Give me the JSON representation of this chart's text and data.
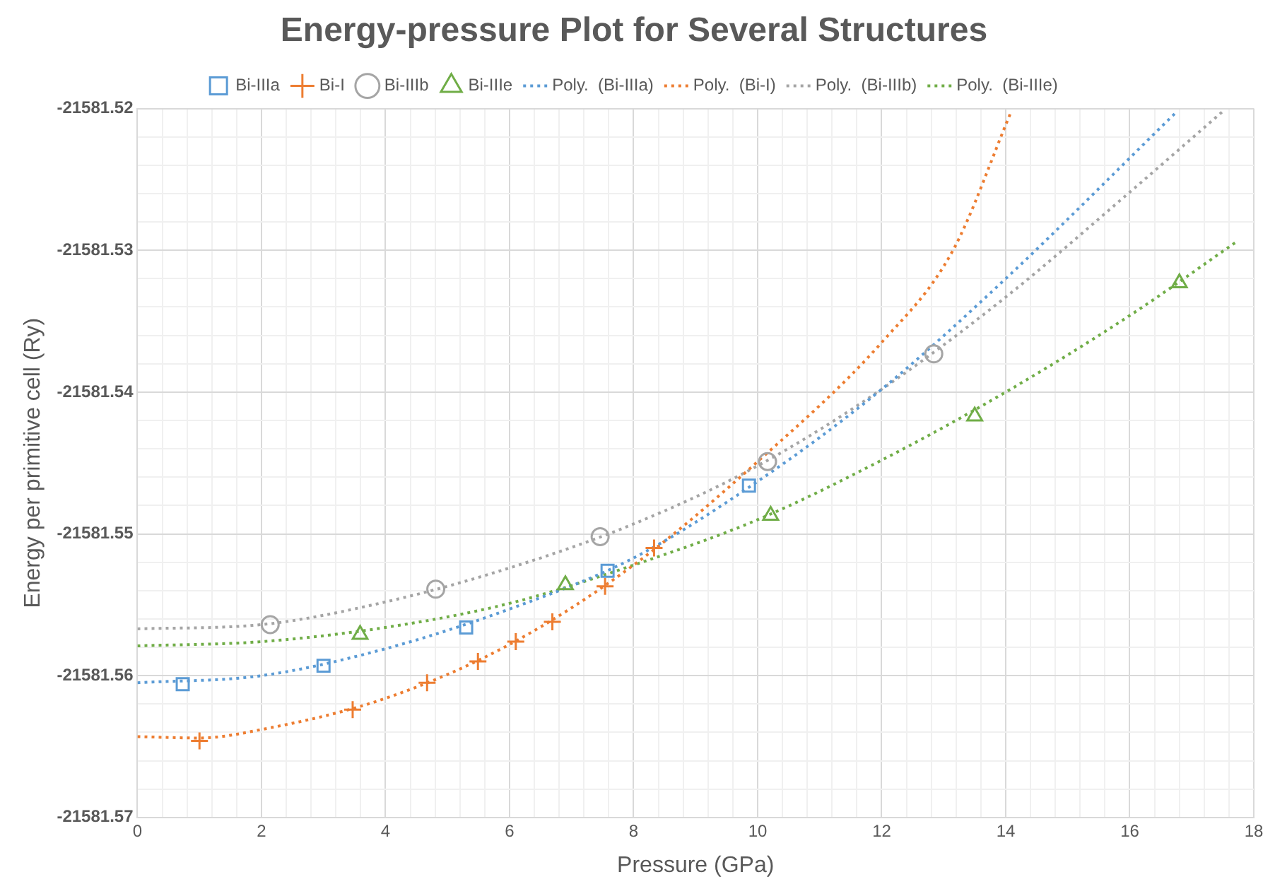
{
  "chart_data": {
    "type": "scatter",
    "title": "Energy-pressure Plot for Several Structures",
    "xlabel": "Pressure (GPa)",
    "ylabel": "Energy per primitive cell (Ry)",
    "xlim": [
      0,
      18
    ],
    "ylim": [
      -21581.57,
      -21581.52
    ],
    "xticks": [
      0,
      {
        "value": 0.4,
        "label": null
      },
      {
        "value": 0.8,
        "label": null
      },
      {
        "value": 1.2,
        "label": null
      },
      {
        "value": 1.6,
        "label": null
      },
      2,
      {
        "value": 2.4,
        "label": null
      },
      {
        "value": 2.8,
        "label": null
      },
      {
        "value": 3.2,
        "label": null
      },
      {
        "value": 3.6,
        "label": null
      },
      4,
      {
        "value": 4.4,
        "label": null
      },
      {
        "value": 4.8,
        "label": null
      },
      {
        "value": 5.2,
        "label": null
      },
      {
        "value": 5.6,
        "label": null
      },
      6,
      {
        "value": 6.4,
        "label": null
      },
      {
        "value": 6.8,
        "label": null
      },
      {
        "value": 7.2,
        "label": null
      },
      {
        "value": 7.6,
        "label": null
      },
      8,
      {
        "value": 8.4,
        "label": null
      },
      {
        "value": 8.8,
        "label": null
      },
      {
        "value": 9.2,
        "label": null
      },
      {
        "value": 9.6,
        "label": null
      },
      10,
      {
        "value": 10.4,
        "label": null
      },
      {
        "value": 10.8,
        "label": null
      },
      {
        "value": 11.2,
        "label": null
      },
      {
        "value": 11.6,
        "label": null
      },
      12,
      {
        "value": 12.4,
        "label": null
      },
      {
        "value": 12.8,
        "label": null
      },
      {
        "value": 13.2,
        "label": null
      },
      {
        "value": 13.6,
        "label": null
      },
      14,
      {
        "value": 14.4,
        "label": null
      },
      {
        "value": 14.8,
        "label": null
      },
      {
        "value": 15.2,
        "label": null
      },
      {
        "value": 15.6,
        "label": null
      },
      16,
      {
        "value": 16.4,
        "label": null
      },
      {
        "value": 16.8,
        "label": null
      },
      {
        "value": 17.2,
        "label": null
      },
      {
        "value": 17.6,
        "label": null
      },
      18
    ],
    "yticks": [
      -21581.57,
      {
        "value": -21581.568,
        "label": null
      },
      {
        "value": -21581.566,
        "label": null
      },
      {
        "value": -21581.564,
        "label": null
      },
      {
        "value": -21581.562,
        "label": null
      },
      -21581.56,
      {
        "value": -21581.558,
        "label": null
      },
      {
        "value": -21581.556,
        "label": null
      },
      {
        "value": -21581.554,
        "label": null
      },
      {
        "value": -21581.552,
        "label": null
      },
      -21581.55,
      {
        "value": -21581.548,
        "label": null
      },
      {
        "value": -21581.546,
        "label": null
      },
      {
        "value": -21581.544,
        "label": null
      },
      {
        "value": -21581.542,
        "label": null
      },
      -21581.54,
      {
        "value": -21581.538,
        "label": null
      },
      {
        "value": -21581.536,
        "label": null
      },
      {
        "value": -21581.534,
        "label": null
      },
      {
        "value": -21581.532,
        "label": null
      },
      -21581.53,
      {
        "value": -21581.528,
        "label": null
      },
      {
        "value": -21581.526,
        "label": null
      },
      {
        "value": -21581.524,
        "label": null
      },
      {
        "value": -21581.522,
        "label": null
      },
      -21581.52
    ],
    "grid": true,
    "legend": "top",
    "series": [
      {
        "name": "Bi-IIIa",
        "marker": "square",
        "color": "#5b9bd5",
        "x": [
          0.73,
          3.0,
          5.3,
          7.58,
          9.86
        ],
        "values": [
          -21581.5606,
          -21581.5593,
          -21581.5566,
          -21581.5526,
          -21581.5466
        ]
      },
      {
        "name": "Bi-I",
        "marker": "cross",
        "color": "#ed7d31",
        "x": [
          1.0,
          3.47,
          4.67,
          5.49,
          6.1,
          6.69,
          7.54,
          8.33
        ],
        "values": [
          -21581.5646,
          -21581.5624,
          -21581.5605,
          -21581.559,
          -21581.5576,
          -21581.5562,
          -21581.5537,
          -21581.551
        ]
      },
      {
        "name": "Bi-IIIb",
        "marker": "circle",
        "color": "#a5a5a5",
        "x": [
          2.14,
          4.81,
          7.46,
          10.16,
          12.84
        ],
        "values": [
          -21581.5564,
          -21581.5539,
          -21581.5502,
          -21581.5449,
          -21581.5373
        ]
      },
      {
        "name": "Bi-IIIe",
        "marker": "triangle",
        "color": "#70ad47",
        "x": [
          3.59,
          6.9,
          10.21,
          13.5,
          16.8
        ],
        "values": [
          -21581.5571,
          -21581.5536,
          -21581.5487,
          -21581.5417,
          -21581.5323
        ]
      },
      {
        "name": "Poly.  (Bi-IIIa)",
        "type": "line",
        "line_style": "dotted",
        "color": "#5b9bd5",
        "x": [
          0,
          2,
          4,
          6,
          8,
          10,
          12,
          14,
          16.74
        ],
        "values": [
          -21581.5605,
          -21581.56,
          -21581.5581,
          -21581.5553,
          -21581.5517,
          -21581.5463,
          -21581.5398,
          -21581.532,
          -21581.5203
        ]
      },
      {
        "name": "Poly.  (Bi-I)",
        "type": "line",
        "line_style": "dotted",
        "color": "#ed7d31",
        "x": [
          0,
          1,
          2,
          4,
          6,
          8,
          10,
          12,
          13.15,
          14.08
        ],
        "values": [
          -21581.5643,
          -21581.5644,
          -21581.5638,
          -21581.5616,
          -21581.5578,
          -21581.5522,
          -21581.5449,
          -21581.5365,
          -21581.53,
          -21581.5203
        ]
      },
      {
        "name": "Poly.  (Bi-IIIb)",
        "type": "line",
        "line_style": "dotted",
        "color": "#a5a5a5",
        "x": [
          0,
          2,
          4,
          6,
          8,
          10,
          12,
          14,
          16,
          17.5
        ],
        "values": [
          -21581.5567,
          -21581.5564,
          -21581.5548,
          -21581.5524,
          -21581.5493,
          -21581.5452,
          -21581.5398,
          -21581.5333,
          -21581.5259,
          -21581.5202
        ]
      },
      {
        "name": "Poly.  (Bi-IIIe)",
        "type": "line",
        "line_style": "dotted",
        "color": "#70ad47",
        "x": [
          0,
          2,
          4,
          6,
          8,
          10,
          12,
          14,
          16,
          17.72
        ],
        "values": [
          -21581.5579,
          -21581.5576,
          -21581.5566,
          -21581.5549,
          -21581.5522,
          -21581.549,
          -21581.5448,
          -21581.54,
          -21581.5346,
          -21581.5294
        ]
      }
    ]
  }
}
